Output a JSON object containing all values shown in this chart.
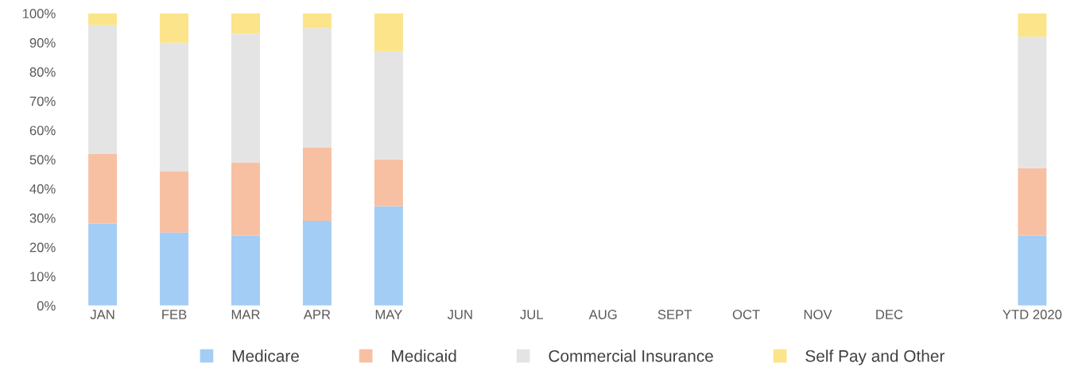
{
  "chart_data": {
    "type": "bar",
    "stacked": true,
    "categories": [
      "JAN",
      "FEB",
      "MAR",
      "APR",
      "MAY",
      "JUN",
      "JUL",
      "AUG",
      "SEPT",
      "OCT",
      "NOV",
      "DEC",
      null,
      "YTD 2020"
    ],
    "series": [
      {
        "name": "Medicare",
        "color": "#a3cdf4",
        "values": [
          28,
          25,
          24,
          29,
          34,
          null,
          null,
          null,
          null,
          null,
          null,
          null,
          null,
          24
        ]
      },
      {
        "name": "Medicaid",
        "color": "#f8c0a2",
        "values": [
          24,
          21,
          25,
          25,
          16,
          null,
          null,
          null,
          null,
          null,
          null,
          null,
          null,
          23
        ]
      },
      {
        "name": "Commercial Insurance",
        "color": "#e4e4e4",
        "values": [
          44,
          44,
          44,
          41,
          37,
          null,
          null,
          null,
          null,
          null,
          null,
          null,
          null,
          45
        ]
      },
      {
        "name": "Self Pay and Other",
        "color": "#fbe48a",
        "values": [
          4,
          10,
          7,
          5,
          13,
          null,
          null,
          null,
          null,
          null,
          null,
          null,
          null,
          8
        ]
      }
    ],
    "ylim": [
      0,
      100
    ],
    "yticks": [
      {
        "value": 0,
        "label": "0%"
      },
      {
        "value": 10,
        "label": "10%"
      },
      {
        "value": 20,
        "label": "20%"
      },
      {
        "value": 30,
        "label": "30%"
      },
      {
        "value": 40,
        "label": "40%"
      },
      {
        "value": 50,
        "label": "50%"
      },
      {
        "value": 60,
        "label": "60%"
      },
      {
        "value": 70,
        "label": "70%"
      },
      {
        "value": 80,
        "label": "80%"
      },
      {
        "value": 90,
        "label": "90%"
      },
      {
        "value": 100,
        "label": "100%"
      }
    ],
    "grid": false,
    "legend": "bottom",
    "marker": "square"
  }
}
